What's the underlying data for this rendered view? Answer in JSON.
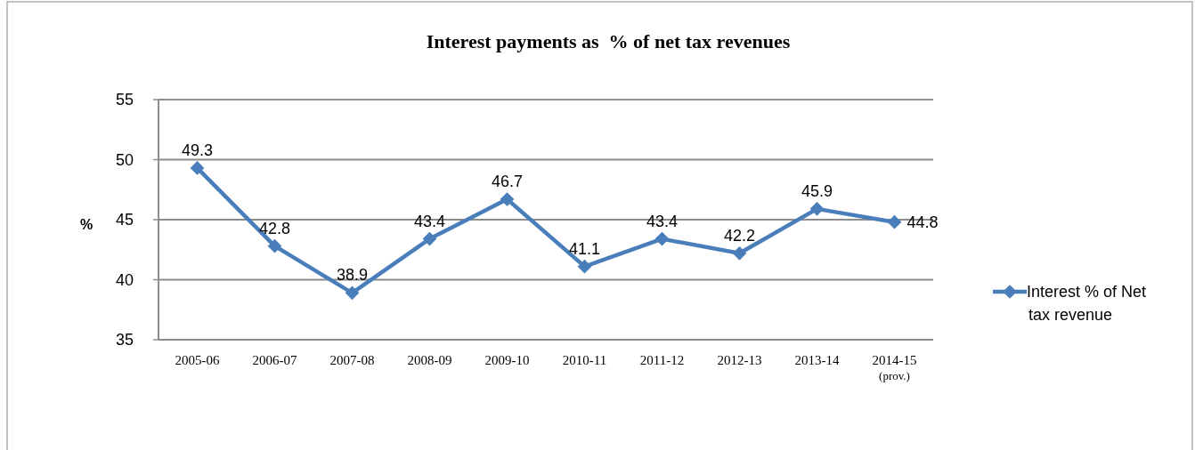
{
  "chart_data": {
    "type": "line",
    "title": "Interest payments as  % of net tax revenues",
    "ylabel": "%",
    "categories": [
      "2005-06",
      "2006-07",
      "2007-08",
      "2008-09",
      "2009-10",
      "2010-11",
      "2011-12",
      "2012-13",
      "2013-14",
      "2014-15\n(prov.)"
    ],
    "series": [
      {
        "name": "Interest % of Net tax revenue",
        "color": "#4a7ebb",
        "values": [
          49.3,
          42.8,
          38.9,
          43.4,
          46.7,
          41.1,
          43.4,
          42.2,
          45.9,
          44.8
        ]
      }
    ],
    "ylim": [
      35,
      55
    ],
    "yticks": [
      35,
      40,
      45,
      50,
      55
    ],
    "grid": "y",
    "legend": "right",
    "marker": "diamond",
    "line_style": "solid",
    "data_labels": true
  }
}
